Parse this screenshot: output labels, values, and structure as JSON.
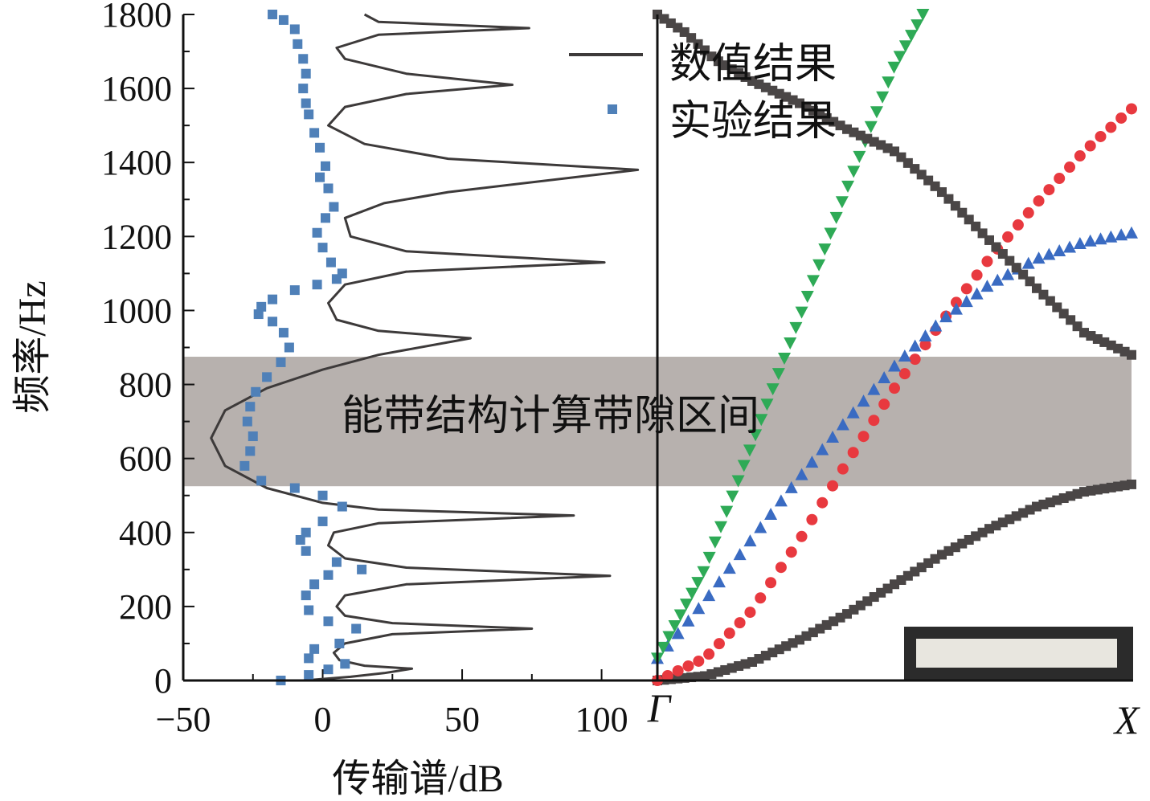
{
  "chart_data": [
    {
      "type": "line",
      "panel": "transmission",
      "xlabel": "传输谱/dB",
      "ylabel": "频率/Hz",
      "xlim": [
        -50,
        120
      ],
      "ylim": [
        0,
        1800
      ],
      "x_ticks": [
        -50,
        0,
        50,
        100
      ],
      "x_tick_labels": [
        "−50",
        "0",
        "50",
        "100"
      ],
      "y_ticks": [
        0,
        200,
        400,
        600,
        800,
        1000,
        1200,
        1400,
        1600,
        1800
      ],
      "y_tick_labels": [
        "0",
        "200",
        "400",
        "600",
        "800",
        "1000",
        "1200",
        "1400",
        "1600",
        "1800"
      ],
      "bandgap": {
        "from": 525,
        "to": 875,
        "label": "能带结构计算带隙区间",
        "color": "#b7b1ae"
      },
      "legend": {
        "position": "top-right"
      },
      "series": [
        {
          "name": "数值结果",
          "style": "line",
          "color": "#3d3a3a",
          "points": [
            [
              -7,
              0
            ],
            [
              10,
              10
            ],
            [
              22,
              20
            ],
            [
              32,
              32
            ],
            [
              15,
              40
            ],
            [
              6,
              55
            ],
            [
              4,
              75
            ],
            [
              8,
              100
            ],
            [
              25,
              125
            ],
            [
              75,
              140
            ],
            [
              25,
              155
            ],
            [
              8,
              175
            ],
            [
              5,
              200
            ],
            [
              8,
              230
            ],
            [
              30,
              260
            ],
            [
              103,
              283
            ],
            [
              30,
              305
            ],
            [
              8,
              330
            ],
            [
              2,
              365
            ],
            [
              4,
              400
            ],
            [
              20,
              425
            ],
            [
              90,
              446
            ],
            [
              20,
              462
            ],
            [
              0,
              480
            ],
            [
              -20,
              520
            ],
            [
              -35,
              580
            ],
            [
              -40,
              655
            ],
            [
              -35,
              730
            ],
            [
              -20,
              790
            ],
            [
              0,
              840
            ],
            [
              20,
              880
            ],
            [
              53,
              925
            ],
            [
              20,
              945
            ],
            [
              5,
              975
            ],
            [
              2,
              1020
            ],
            [
              8,
              1070
            ],
            [
              30,
              1105
            ],
            [
              101,
              1130
            ],
            [
              30,
              1160
            ],
            [
              10,
              1200
            ],
            [
              8,
              1250
            ],
            [
              22,
              1290
            ],
            [
              45,
              1320
            ],
            [
              113,
              1380
            ],
            [
              45,
              1410
            ],
            [
              15,
              1450
            ],
            [
              2,
              1500
            ],
            [
              8,
              1550
            ],
            [
              30,
              1585
            ],
            [
              68,
              1610
            ],
            [
              30,
              1640
            ],
            [
              8,
              1680
            ],
            [
              5,
              1710
            ],
            [
              20,
              1745
            ],
            [
              74,
              1763
            ],
            [
              20,
              1780
            ],
            [
              15,
              1800
            ]
          ]
        },
        {
          "name": "实验结果",
          "style": "markers",
          "marker": "square",
          "color": "#4f80b8",
          "points": [
            [
              -15,
              0
            ],
            [
              -5,
              15
            ],
            [
              2,
              30
            ],
            [
              8,
              45
            ],
            [
              -5,
              60
            ],
            [
              -3,
              85
            ],
            [
              6,
              100
            ],
            [
              12,
              140
            ],
            [
              2,
              160
            ],
            [
              -5,
              190
            ],
            [
              -6,
              230
            ],
            [
              -3,
              260
            ],
            [
              2,
              285
            ],
            [
              14,
              300
            ],
            [
              5,
              320
            ],
            [
              -6,
              350
            ],
            [
              -8,
              380
            ],
            [
              -6,
              400
            ],
            [
              0,
              430
            ],
            [
              7,
              470
            ],
            [
              0,
              500
            ],
            [
              -10,
              520
            ],
            [
              -22,
              540
            ],
            [
              -28,
              580
            ],
            [
              -26,
              620
            ],
            [
              -25,
              660
            ],
            [
              -27,
              700
            ],
            [
              -26,
              740
            ],
            [
              -24,
              780
            ],
            [
              -20,
              820
            ],
            [
              -15,
              860
            ],
            [
              -12,
              900
            ],
            [
              -14,
              940
            ],
            [
              -18,
              970
            ],
            [
              -23,
              990
            ],
            [
              -22,
              1010
            ],
            [
              -18,
              1030
            ],
            [
              -10,
              1055
            ],
            [
              -2,
              1070
            ],
            [
              5,
              1085
            ],
            [
              7,
              1100
            ],
            [
              3,
              1130
            ],
            [
              0,
              1170
            ],
            [
              -2,
              1210
            ],
            [
              1,
              1250
            ],
            [
              4,
              1280
            ],
            [
              2,
              1330
            ],
            [
              -1,
              1360
            ],
            [
              1,
              1390
            ],
            [
              -1,
              1440
            ],
            [
              -3,
              1480
            ],
            [
              -5,
              1530
            ],
            [
              -6,
              1560
            ],
            [
              -7,
              1600
            ],
            [
              -6,
              1640
            ],
            [
              -7,
              1680
            ],
            [
              -9,
              1720
            ],
            [
              -10,
              1760
            ],
            [
              -14,
              1785
            ],
            [
              -18,
              1800
            ]
          ]
        }
      ]
    },
    {
      "type": "scatter",
      "panel": "band-structure",
      "x_tick_labels": [
        "Γ",
        "X"
      ],
      "xlim": [
        0,
        1
      ],
      "ylim": [
        0,
        1800
      ],
      "series": [
        {
          "marker": "square",
          "color": "#4a4646",
          "points": [
            [
              0,
              0
            ],
            [
              0.1,
              12
            ],
            [
              0.2,
              50
            ],
            [
              0.3,
              110
            ],
            [
              0.4,
              180
            ],
            [
              0.5,
              260
            ],
            [
              0.6,
              340
            ],
            [
              0.7,
              410
            ],
            [
              0.8,
              470
            ],
            [
              0.9,
              510
            ],
            [
              1,
              530
            ]
          ]
        },
        {
          "marker": "circle",
          "color": "#e8393f",
          "points": [
            [
              0,
              0
            ],
            [
              0.1,
              60
            ],
            [
              0.2,
              190
            ],
            [
              0.3,
              380
            ],
            [
              0.4,
              590
            ],
            [
              0.5,
              790
            ],
            [
              0.6,
              970
            ],
            [
              0.7,
              1140
            ],
            [
              0.8,
              1290
            ],
            [
              0.9,
              1430
            ],
            [
              1,
              1545
            ]
          ]
        },
        {
          "marker": "triangle-up",
          "color": "#3a6bc2",
          "points": [
            [
              0,
              60
            ],
            [
              0.1,
              215
            ],
            [
              0.2,
              385
            ],
            [
              0.3,
              550
            ],
            [
              0.4,
              705
            ],
            [
              0.5,
              850
            ],
            [
              0.6,
              975
            ],
            [
              0.7,
              1070
            ],
            [
              0.8,
              1140
            ],
            [
              0.9,
              1185
            ],
            [
              1,
              1210
            ]
          ]
        },
        {
          "marker": "triangle-down",
          "color": "#2eaa56",
          "points": [
            [
              0,
              60
            ],
            [
              0.1,
              300
            ],
            [
              0.2,
              640
            ],
            [
              0.3,
              980
            ],
            [
              0.4,
              1330
            ],
            [
              0.5,
              1660
            ],
            [
              0.56,
              1800
            ]
          ]
        },
        {
          "marker": "square",
          "color": "#4a4646",
          "points": [
            [
              0,
              1800
            ],
            [
              0.06,
              1750
            ],
            [
              0.12,
              1680
            ],
            [
              0.2,
              1620
            ],
            [
              0.3,
              1560
            ],
            [
              0.4,
              1490
            ],
            [
              0.5,
              1430
            ],
            [
              0.6,
              1320
            ],
            [
              0.7,
              1190
            ],
            [
              0.8,
              1060
            ],
            [
              0.9,
              940
            ],
            [
              1,
              880
            ]
          ]
        }
      ]
    }
  ]
}
